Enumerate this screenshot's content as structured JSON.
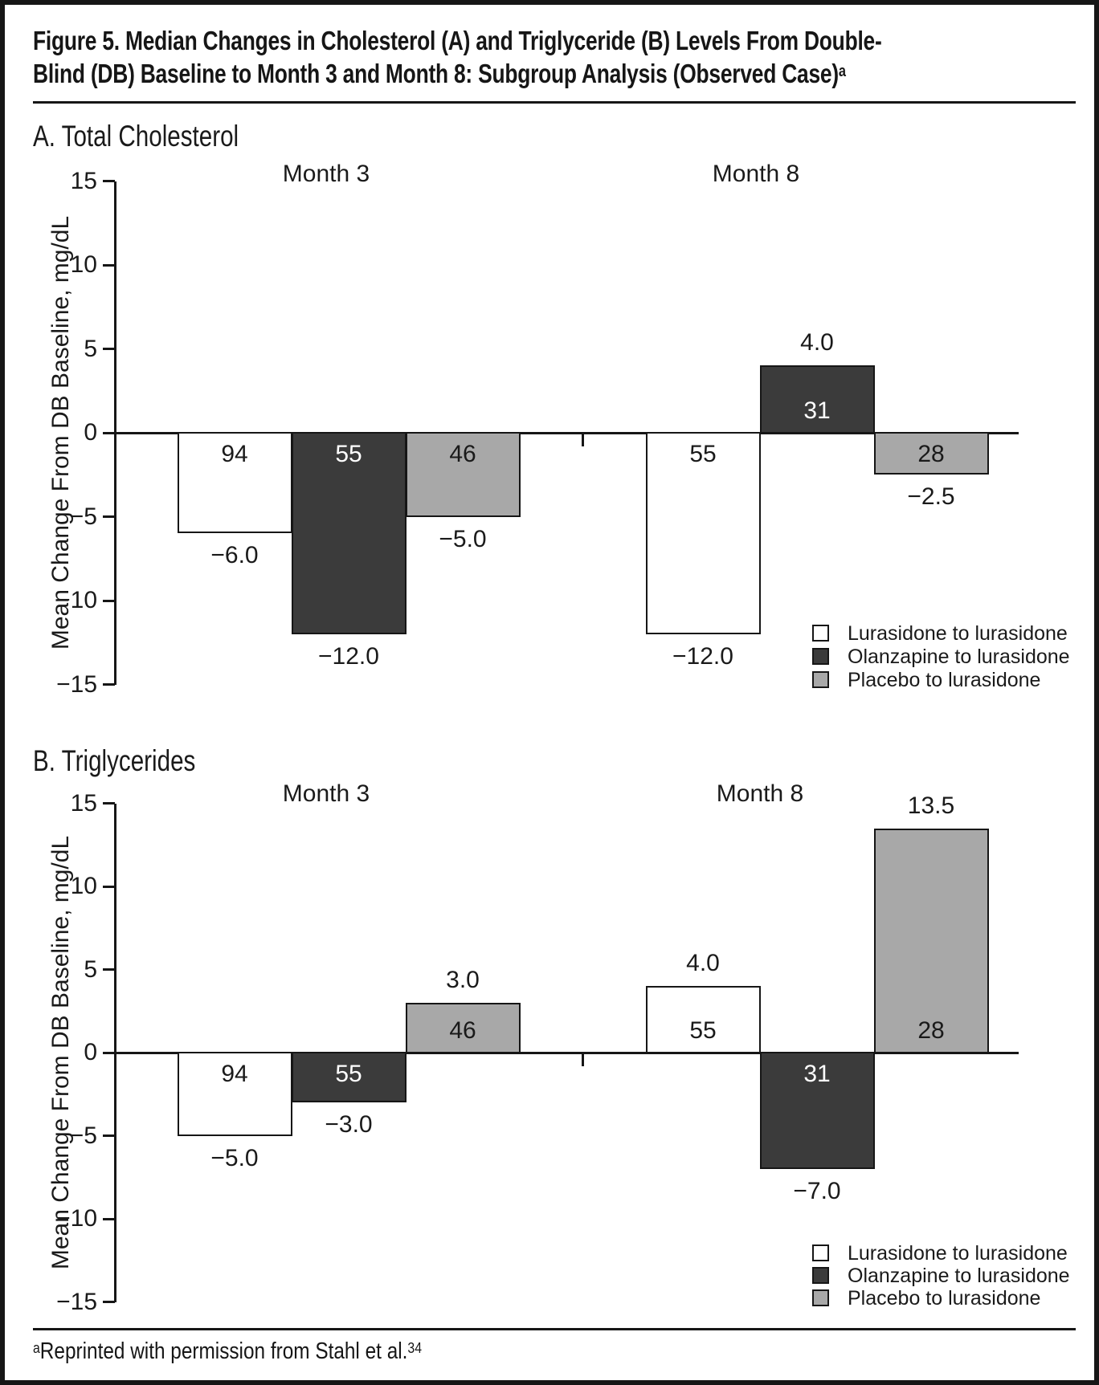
{
  "figure": {
    "title_line1": "Figure 5. Median Changes in Cholesterol (A) and Triglyceride (B) Levels From Double-",
    "title_line2": "Blind (DB) Baseline to Month 3 and Month 8: Subgroup Analysis (Observed Case)",
    "title_superscript": "a",
    "footnote_marker": "a",
    "footnote_text": "Reprinted with permission from Stahl et al.",
    "footnote_ref": "34"
  },
  "colors": {
    "lurasidone_to_lurasidone": "#ffffff",
    "olanzapine_to_lurasidone": "#3b3b3b",
    "placebo_to_lurasidone": "#a8a8a8",
    "bar_border": "#161616",
    "axis": "#161616",
    "text": "#1a1a1a",
    "n_label_on_dark": "#ffffff"
  },
  "chart_data": [
    {
      "panel": "A",
      "panel_label": "A. Total Cholesterol",
      "type": "bar",
      "ylabel": "Mean Change From DB Baseline, mg/dL",
      "ylim": [
        -15,
        15
      ],
      "y_ticks": [
        15,
        10,
        5,
        0,
        -5,
        -10,
        -15
      ],
      "legend": [
        "Lurasidone to lurasidone",
        "Olanzapine to lurasidone",
        "Placebo to lurasidone"
      ],
      "legend_position": "bottom-right-inside",
      "grid": false,
      "groups": [
        {
          "label": "Month 3",
          "bars": [
            {
              "series": "Lurasidone to lurasidone",
              "value": -6.0,
              "value_label": "−6.0",
              "n": "94"
            },
            {
              "series": "Olanzapine to lurasidone",
              "value": -12.0,
              "value_label": "−12.0",
              "n": "55"
            },
            {
              "series": "Placebo to lurasidone",
              "value": -5.0,
              "value_label": "−5.0",
              "n": "46"
            }
          ]
        },
        {
          "label": "Month 8",
          "bars": [
            {
              "series": "Lurasidone to lurasidone",
              "value": -12.0,
              "value_label": "−12.0",
              "n": "55"
            },
            {
              "series": "Olanzapine to lurasidone",
              "value": 4.0,
              "value_label": "4.0",
              "n": "31"
            },
            {
              "series": "Placebo to lurasidone",
              "value": -2.5,
              "value_label": "−2.5",
              "n": "28"
            }
          ]
        }
      ]
    },
    {
      "panel": "B",
      "panel_label": "B. Triglycerides",
      "type": "bar",
      "ylabel": "Mean Change From DB Baseline, mg/dL",
      "ylim": [
        -15,
        15
      ],
      "y_ticks": [
        15,
        10,
        5,
        0,
        -5,
        -10,
        -15
      ],
      "legend": [
        "Lurasidone to lurasidone",
        "Olanzapine to lurasidone",
        "Placebo to lurasidone"
      ],
      "legend_position": "bottom-right-inside",
      "grid": false,
      "groups": [
        {
          "label": "Month 3",
          "bars": [
            {
              "series": "Lurasidone to lurasidone",
              "value": -5.0,
              "value_label": "−5.0",
              "n": "94"
            },
            {
              "series": "Olanzapine to lurasidone",
              "value": -3.0,
              "value_label": "−3.0",
              "n": "55"
            },
            {
              "series": "Placebo to lurasidone",
              "value": 3.0,
              "value_label": "3.0",
              "n": "46"
            }
          ]
        },
        {
          "label": "Month 8",
          "bars": [
            {
              "series": "Lurasidone to lurasidone",
              "value": 4.0,
              "value_label": "4.0",
              "n": "55"
            },
            {
              "series": "Olanzapine to lurasidone",
              "value": -7.0,
              "value_label": "−7.0",
              "n": "31"
            },
            {
              "series": "Placebo to lurasidone",
              "value": 13.5,
              "value_label": "13.5",
              "n": "28"
            }
          ]
        }
      ]
    }
  ]
}
